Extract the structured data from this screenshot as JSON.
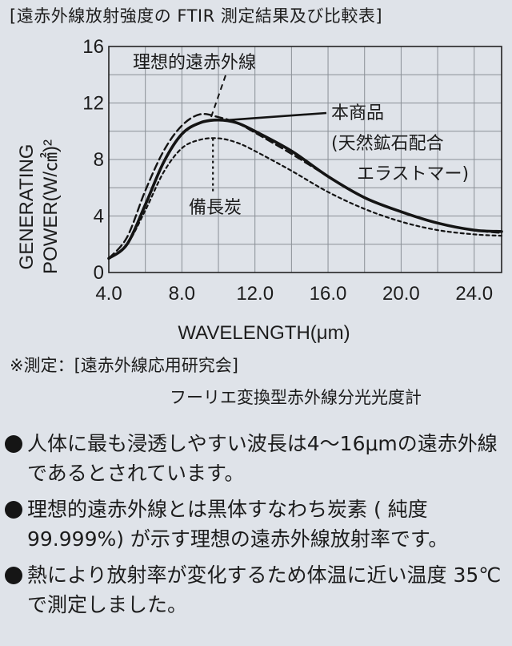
{
  "header": {
    "title": "[遠赤外線放射強度の FTIR 測定結果及び比較表]"
  },
  "chart_data": {
    "type": "line",
    "xlabel": "WAVELENGTH(μm)",
    "ylabel": [
      "GENERATING",
      "POWER(W/㎠)²"
    ],
    "xlim": [
      4.0,
      25.5
    ],
    "ylim": [
      0,
      16
    ],
    "xticks": [
      "4.0",
      "8.0",
      "12.0",
      "16.0",
      "20.0",
      "24.0"
    ],
    "yticks": [
      "0",
      "4",
      "8",
      "12",
      "16"
    ],
    "grid": true,
    "series": [
      {
        "name": "理想的遠赤外線",
        "style": "dashed",
        "x": [
          4.0,
          5.0,
          6.0,
          7.0,
          8.0,
          9.0,
          10.0,
          11.0,
          12.0,
          14.0,
          16.0,
          18.0,
          20.0,
          22.0,
          24.0,
          25.5
        ],
        "y": [
          1.0,
          2.5,
          5.8,
          8.6,
          10.4,
          11.2,
          11.0,
          10.6,
          9.9,
          8.4,
          6.8,
          5.3,
          4.3,
          3.5,
          3.0,
          2.8
        ]
      },
      {
        "name": "本商品(天然鉱石配合エラストマー)",
        "style": "solid",
        "x": [
          4.0,
          5.0,
          6.0,
          7.0,
          8.0,
          9.0,
          10.0,
          11.0,
          12.0,
          14.0,
          16.0,
          18.0,
          20.0,
          22.0,
          24.0,
          25.5
        ],
        "y": [
          1.0,
          2.0,
          4.8,
          7.8,
          9.8,
          10.6,
          10.8,
          10.6,
          10.0,
          8.6,
          6.8,
          5.3,
          4.3,
          3.5,
          3.0,
          2.9
        ]
      },
      {
        "name": "備長炭",
        "style": "dotted",
        "x": [
          4.0,
          5.0,
          6.0,
          7.0,
          8.0,
          9.0,
          10.0,
          11.0,
          12.0,
          14.0,
          16.0,
          18.0,
          20.0,
          22.0,
          24.0,
          25.5
        ],
        "y": [
          1.0,
          2.0,
          4.4,
          7.1,
          8.8,
          9.4,
          9.5,
          9.2,
          8.6,
          7.2,
          5.7,
          4.5,
          3.6,
          3.0,
          2.7,
          2.6
        ]
      }
    ],
    "annotations": {
      "ideal": "理想的遠赤外線",
      "product_1": "本商品",
      "product_2": "(天然鉱石配合",
      "product_3": "エラストマー)",
      "charcoal": "備長炭"
    }
  },
  "notes": {
    "measurement_1": "※測定：[遠赤外線応用研究会]",
    "measurement_2": "フーリエ変換型赤外線分光光度計"
  },
  "bullets": [
    "人体に最も浸透しやすい波長は4〜16μmの遠赤外線であるとされています。",
    "理想的遠赤外線とは黒体すなわち炭素 ( 純度99.999%) が示す理想の遠赤外線放射率です。",
    "熱により放射率が変化するため体温に近い温度 35℃で測定しました。"
  ]
}
